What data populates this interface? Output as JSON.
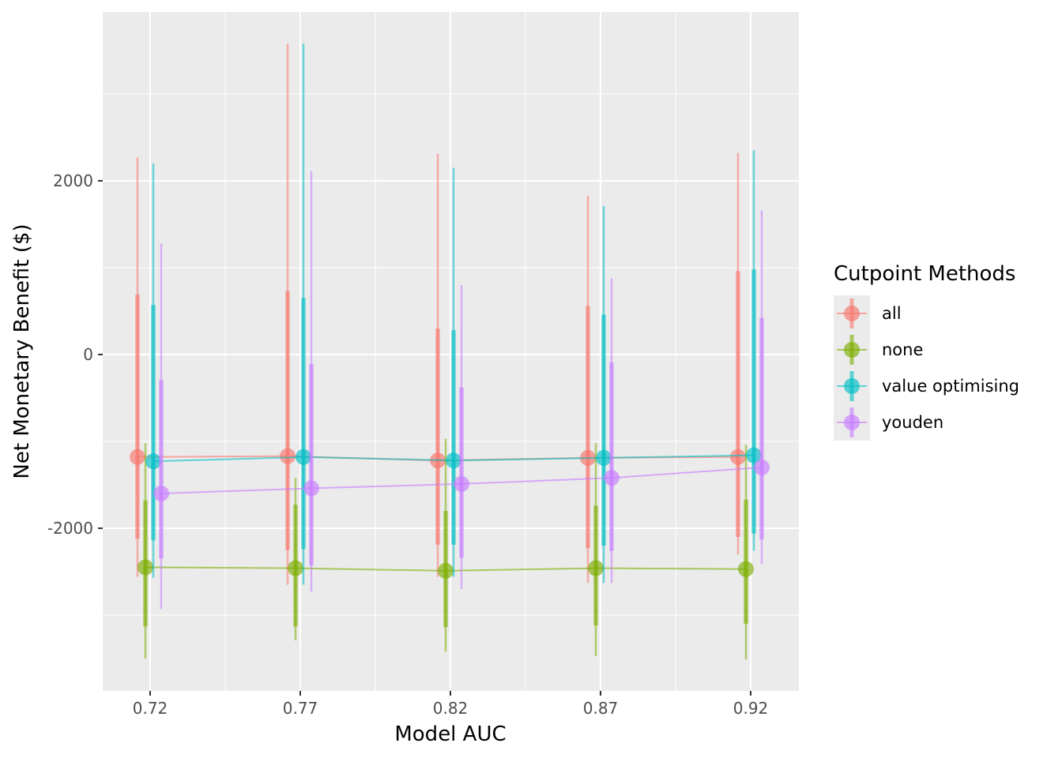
{
  "chart_data": {
    "type": "scatter",
    "xlabel": "Model AUC",
    "ylabel": "Net Monetary Benefit ($)",
    "x_tick_labels": [
      "0.72",
      "0.77",
      "0.82",
      "0.87",
      "0.92"
    ],
    "y_ticks": [
      2000,
      0,
      -2000
    ],
    "y_tick_labels": [
      "2000",
      "0",
      "-2000"
    ],
    "ylim": [
      -3900,
      3900
    ],
    "grid": true,
    "legend": {
      "title": "Cutpoint Methods",
      "placement": "right"
    },
    "series": [
      {
        "name": "all",
        "color": "#F8766D",
        "median": [
          -1180,
          -1170,
          -1220,
          -1190,
          -1180
        ],
        "interval_inner": [
          [
            -2120,
            690
          ],
          [
            -2250,
            730
          ],
          [
            -2190,
            300
          ],
          [
            -2230,
            560
          ],
          [
            -2100,
            960
          ]
        ],
        "interval_outer": [
          [
            -2560,
            2270
          ],
          [
            -2650,
            3580
          ],
          [
            -2560,
            2310
          ],
          [
            -2630,
            1830
          ],
          [
            -2300,
            2320
          ]
        ]
      },
      {
        "name": "none",
        "color": "#7CAE00",
        "median": [
          -2450,
          -2460,
          -2490,
          -2460,
          -2470
        ],
        "interval_inner": [
          [
            -3130,
            -1680
          ],
          [
            -3130,
            -1730
          ],
          [
            -3140,
            -1800
          ],
          [
            -3120,
            -1740
          ],
          [
            -3100,
            -1670
          ]
        ],
        "interval_outer": [
          [
            -3500,
            -1020
          ],
          [
            -3290,
            -1420
          ],
          [
            -3420,
            -970
          ],
          [
            -3470,
            -1020
          ],
          [
            -3510,
            -1040
          ]
        ]
      },
      {
        "name": "value optimising",
        "color": "#00BFC4",
        "median": [
          -1230,
          -1180,
          -1220,
          -1190,
          -1160
        ],
        "interval_inner": [
          [
            -2140,
            570
          ],
          [
            -2240,
            650
          ],
          [
            -2190,
            280
          ],
          [
            -2200,
            460
          ],
          [
            -2060,
            980
          ]
        ],
        "interval_outer": [
          [
            -2570,
            2200
          ],
          [
            -2650,
            3580
          ],
          [
            -2560,
            2150
          ],
          [
            -2630,
            1710
          ],
          [
            -2260,
            2350
          ]
        ]
      },
      {
        "name": "youden",
        "color": "#C77CFF",
        "median": [
          -1600,
          -1540,
          -1490,
          -1420,
          -1300
        ],
        "interval_inner": [
          [
            -2350,
            -290
          ],
          [
            -2430,
            -110
          ],
          [
            -2340,
            -380
          ],
          [
            -2260,
            -90
          ],
          [
            -2130,
            420
          ]
        ],
        "interval_outer": [
          [
            -2930,
            1280
          ],
          [
            -2730,
            2110
          ],
          [
            -2700,
            800
          ],
          [
            -2630,
            880
          ],
          [
            -2410,
            1660
          ]
        ]
      }
    ]
  }
}
